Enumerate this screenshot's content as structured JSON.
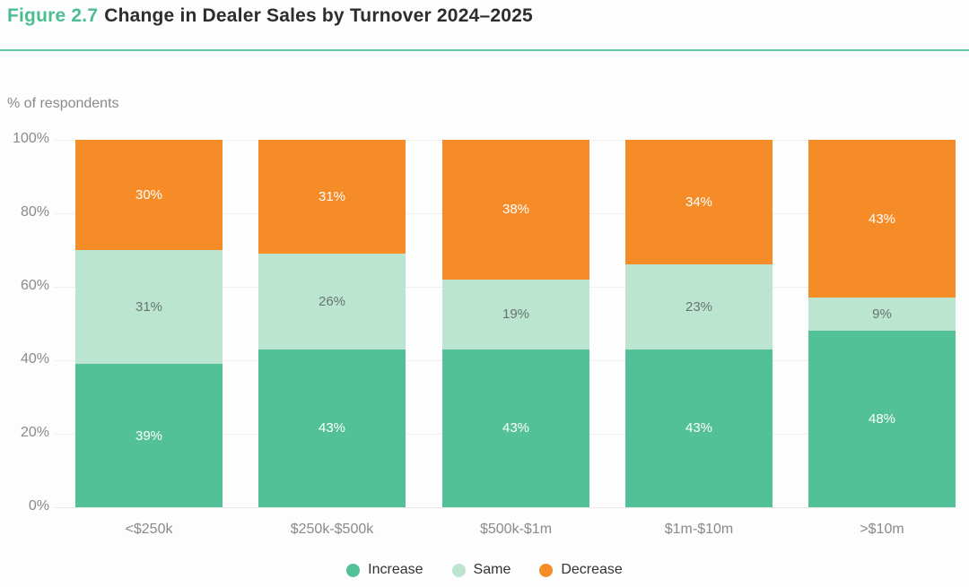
{
  "title": {
    "prefix": "Figure 2.7",
    "text": "Change in Dealer Sales by Turnover 2024–2025"
  },
  "chart_data": {
    "type": "bar",
    "stacked": true,
    "title": "Figure 2.7 Change in Dealer Sales by Turnover 2024–2025",
    "ylabel": "% of respondents",
    "xlabel": "",
    "ylim": [
      0,
      100
    ],
    "grid": true,
    "legend_position": "bottom",
    "categories": [
      "<$250k",
      "$250k-$500k",
      "$500k-$1m",
      "$1m-$10m",
      ">$10m"
    ],
    "y_ticks": [
      "0%",
      "20%",
      "40%",
      "60%",
      "80%",
      "100%"
    ],
    "series": [
      {
        "name": "Increase",
        "color": "#52C197",
        "label_color": "#FFFFFF",
        "values": [
          39,
          43,
          43,
          43,
          48
        ]
      },
      {
        "name": "Same",
        "color": "#BCE5D1",
        "label_color": "#66756E",
        "values": [
          31,
          26,
          19,
          23,
          9
        ]
      },
      {
        "name": "Decrease",
        "color": "#F68C28",
        "label_color": "#FFFFFF",
        "values": [
          30,
          31,
          38,
          34,
          43
        ]
      }
    ]
  },
  "colors": {
    "accent_green": "#4CBD92",
    "divider": "#63C8A3",
    "title_text": "#2B2E2D",
    "axis_text": "#8A8A8A",
    "legend_text": "#333333",
    "gridline": "#F0F0F0",
    "background": "#FDFDFD"
  }
}
